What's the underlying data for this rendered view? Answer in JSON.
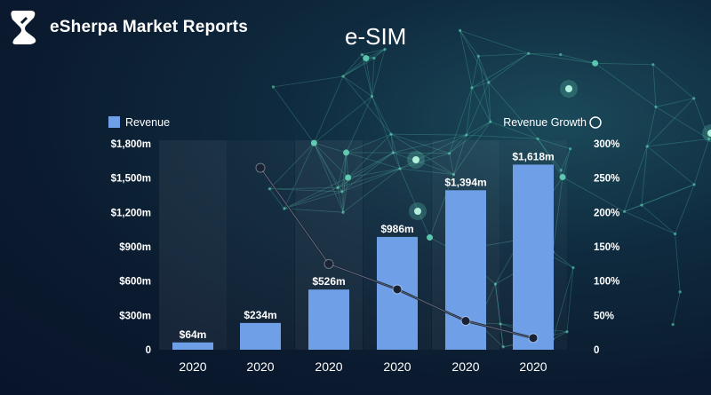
{
  "brand": {
    "name": "eSherpa Market Reports",
    "logo_icon": "esherpa-logo-icon"
  },
  "page": {
    "title": "e-SIM"
  },
  "colors": {
    "bar": "#6f9fe6",
    "line": "#1a2233",
    "axis_text": "#ffffff",
    "network": "#5fd4b8"
  },
  "chart_data": {
    "type": "bar",
    "categories": [
      "2020",
      "2020",
      "2020",
      "2020",
      "2020",
      "2020"
    ],
    "series": [
      {
        "name": "Revenue",
        "type": "bar",
        "axis": "left",
        "values": [
          64,
          234,
          526,
          986,
          1394,
          1618
        ],
        "labels": [
          "$64m",
          "$234m",
          "$526m",
          "$986m",
          "$1,394m",
          "$1,618m"
        ]
      },
      {
        "name": "Revenue Growth",
        "type": "line",
        "axis": "right",
        "values": [
          null,
          265,
          125,
          88,
          42,
          17
        ]
      }
    ],
    "y_left": {
      "ylim": [
        0,
        1800
      ],
      "ticks": [
        "0",
        "$300m",
        "$600m",
        "$900m",
        "$1,200m",
        "$1,500m",
        "$1,800m"
      ]
    },
    "y_right": {
      "ylim": [
        0,
        300
      ],
      "ticks": [
        "0",
        "50%",
        "100%",
        "150%",
        "200%",
        "250%",
        "300%"
      ]
    },
    "legend": {
      "bar_label": "Revenue",
      "line_label": "Revenue Growth",
      "placement": "top"
    },
    "grid": false
  }
}
